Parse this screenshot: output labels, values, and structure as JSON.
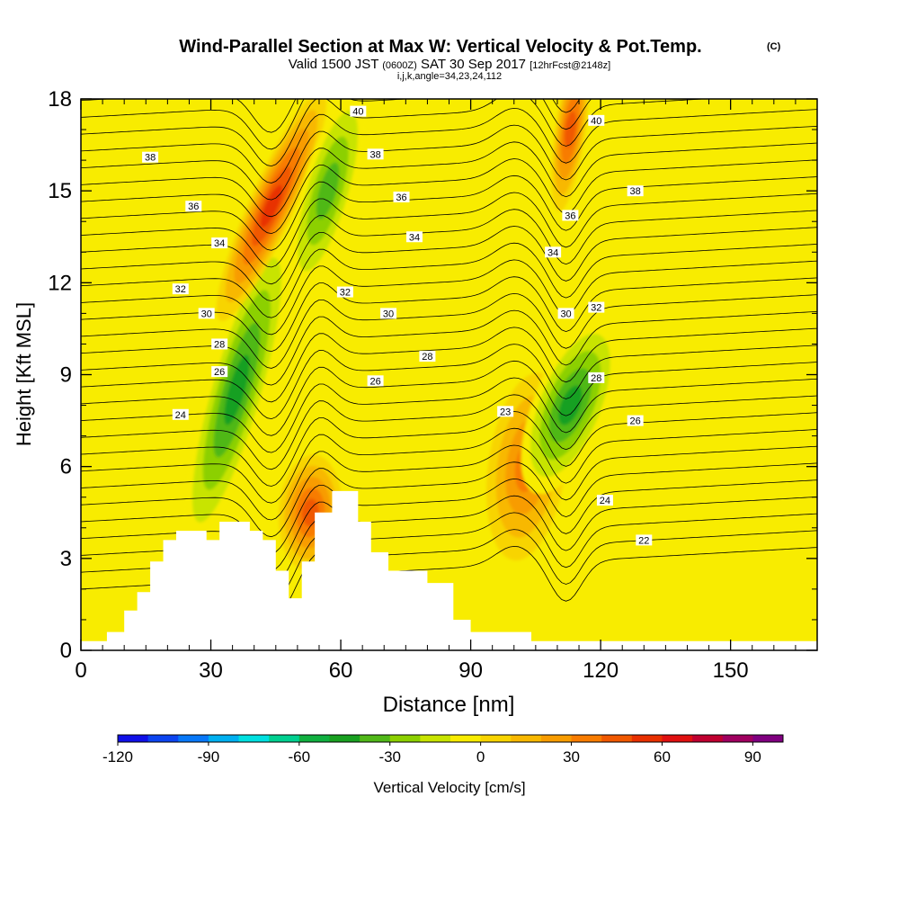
{
  "header": {
    "title": "Wind-Parallel Section at Max W: Vertical Velocity & Pot.Temp.",
    "title_units": "(C)",
    "valid_prefix": "Valid 1500 JST",
    "valid_utc": "(0600Z)",
    "valid_date": "SAT 30 Sep 2017",
    "forecast": "[12hrFcst@2148z]",
    "section_params": "i,j,k,angle=34,23,24,112"
  },
  "colors": {
    "background_field": "#f8ec00",
    "terrain": "#ffffff",
    "contour": "#000000",
    "colorbar": [
      "#1010e8",
      "#0c44f0",
      "#0878f8",
      "#00b0f0",
      "#00e0e0",
      "#00d090",
      "#10b040",
      "#18a020",
      "#50b818",
      "#8cd000",
      "#c8e400",
      "#f8ec00",
      "#f8d400",
      "#f8b800",
      "#f89c00",
      "#f87c00",
      "#f05800",
      "#e83000",
      "#e01010",
      "#c00030",
      "#a00060",
      "#800080",
      "#600090"
    ]
  },
  "chart_data": {
    "type": "heatmap",
    "title": "Wind-Parallel Section at Max W: Vertical Velocity & Pot.Temp.",
    "xlabel": "Distance [nm]",
    "ylabel": "Height [Kft MSL]",
    "xlim": [
      0,
      170
    ],
    "ylim": [
      0,
      18
    ],
    "xticks": [
      0,
      30,
      60,
      90,
      120,
      150
    ],
    "yticks": [
      0,
      3,
      6,
      9,
      12,
      15,
      18
    ],
    "colorbar": {
      "label": "Vertical Velocity [cm/s]",
      "range": [
        -120,
        100
      ],
      "interval": 10,
      "ticks": [
        -120,
        -90,
        -60,
        -30,
        0,
        30,
        60,
        90
      ]
    },
    "velocity_cells": [
      {
        "name": "downdraft-west",
        "x": 36,
        "y": 8.5,
        "value": -45
      },
      {
        "name": "updraft-main",
        "x": 44,
        "y": 14.5,
        "value": 55
      },
      {
        "name": "downdraft-central",
        "x": 57,
        "y": 15,
        "value": -40
      },
      {
        "name": "updraft-low",
        "x": 53,
        "y": 4.5,
        "value": 45
      },
      {
        "name": "updraft-east",
        "x": 103,
        "y": 6,
        "value": 35
      },
      {
        "name": "downdraft-east",
        "x": 113,
        "y": 8,
        "value": -45
      },
      {
        "name": "updraft-upper-east",
        "x": 113,
        "y": 17,
        "value": 50
      }
    ],
    "terrain": [
      {
        "x": 0,
        "h": 0.3
      },
      {
        "x": 6,
        "h": 0.6
      },
      {
        "x": 10,
        "h": 1.3
      },
      {
        "x": 13,
        "h": 1.9
      },
      {
        "x": 16,
        "h": 2.9
      },
      {
        "x": 19,
        "h": 3.6
      },
      {
        "x": 22,
        "h": 3.9
      },
      {
        "x": 26,
        "h": 3.9
      },
      {
        "x": 29,
        "h": 3.6
      },
      {
        "x": 32,
        "h": 4.2
      },
      {
        "x": 39,
        "h": 3.9
      },
      {
        "x": 42,
        "h": 3.6
      },
      {
        "x": 45,
        "h": 2.6
      },
      {
        "x": 48,
        "h": 1.7
      },
      {
        "x": 51,
        "h": 2.9
      },
      {
        "x": 54,
        "h": 4.5
      },
      {
        "x": 58,
        "h": 5.2
      },
      {
        "x": 64,
        "h": 4.2
      },
      {
        "x": 67,
        "h": 3.2
      },
      {
        "x": 71,
        "h": 2.6
      },
      {
        "x": 80,
        "h": 2.2
      },
      {
        "x": 86,
        "h": 1.0
      },
      {
        "x": 90,
        "h": 0.6
      },
      {
        "x": 104,
        "h": 0.3
      },
      {
        "x": 112,
        "h": 0.3
      },
      {
        "x": 170,
        "h": 0.3
      }
    ],
    "contour_labels": [
      {
        "text": "40",
        "x": 64,
        "y": 17.6
      },
      {
        "text": "40",
        "x": 119,
        "y": 17.3
      },
      {
        "text": "38",
        "x": 16,
        "y": 16.1
      },
      {
        "text": "38",
        "x": 68,
        "y": 16.2
      },
      {
        "text": "38",
        "x": 128,
        "y": 15.0
      },
      {
        "text": "36",
        "x": 26,
        "y": 14.5
      },
      {
        "text": "36",
        "x": 74,
        "y": 14.8
      },
      {
        "text": "36",
        "x": 113,
        "y": 14.2
      },
      {
        "text": "34",
        "x": 32,
        "y": 13.3
      },
      {
        "text": "34",
        "x": 77,
        "y": 13.5
      },
      {
        "text": "34",
        "x": 109,
        "y": 13.0
      },
      {
        "text": "32",
        "x": 23,
        "y": 11.8
      },
      {
        "text": "32",
        "x": 61,
        "y": 11.7
      },
      {
        "text": "32",
        "x": 119,
        "y": 11.2
      },
      {
        "text": "30",
        "x": 29,
        "y": 11.0
      },
      {
        "text": "30",
        "x": 71,
        "y": 11.0
      },
      {
        "text": "30",
        "x": 112,
        "y": 11.0
      },
      {
        "text": "28",
        "x": 32,
        "y": 10.0
      },
      {
        "text": "28",
        "x": 80,
        "y": 9.6
      },
      {
        "text": "28",
        "x": 119,
        "y": 8.9
      },
      {
        "text": "26",
        "x": 32,
        "y": 9.1
      },
      {
        "text": "26",
        "x": 68,
        "y": 8.8
      },
      {
        "text": "26",
        "x": 128,
        "y": 7.5
      },
      {
        "text": "24",
        "x": 23,
        "y": 7.7
      },
      {
        "text": "24",
        "x": 121,
        "y": 4.9
      },
      {
        "text": "23",
        "x": 98,
        "y": 7.8
      },
      {
        "text": "22",
        "x": 130,
        "y": 3.6
      }
    ]
  }
}
